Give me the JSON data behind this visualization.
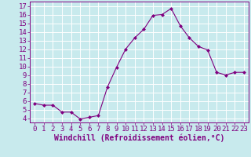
{
  "x": [
    0,
    1,
    2,
    3,
    4,
    5,
    6,
    7,
    8,
    9,
    10,
    11,
    12,
    13,
    14,
    15,
    16,
    17,
    18,
    19,
    20,
    21,
    22,
    23
  ],
  "y": [
    5.7,
    5.5,
    5.5,
    4.7,
    4.7,
    3.9,
    4.1,
    4.3,
    7.6,
    9.9,
    12.0,
    13.3,
    14.3,
    15.9,
    16.0,
    16.7,
    14.7,
    13.3,
    12.3,
    11.9,
    9.3,
    9.0,
    9.3,
    9.3
  ],
  "line_color": "#800080",
  "marker_color": "#800080",
  "bg_color": "#c8eaed",
  "grid_color": "#b0d8dc",
  "xlabel": "Windchill (Refroidissement éolien,°C)",
  "xlabel_color": "#800080",
  "tick_color": "#800080",
  "ylim": [
    3.5,
    17.5
  ],
  "xlim": [
    -0.5,
    23.5
  ],
  "yticks": [
    4,
    5,
    6,
    7,
    8,
    9,
    10,
    11,
    12,
    13,
    14,
    15,
    16,
    17
  ],
  "xticks": [
    0,
    1,
    2,
    3,
    4,
    5,
    6,
    7,
    8,
    9,
    10,
    11,
    12,
    13,
    14,
    15,
    16,
    17,
    18,
    19,
    20,
    21,
    22,
    23
  ],
  "tick_fontsize": 6.5,
  "xlabel_fontsize": 7
}
